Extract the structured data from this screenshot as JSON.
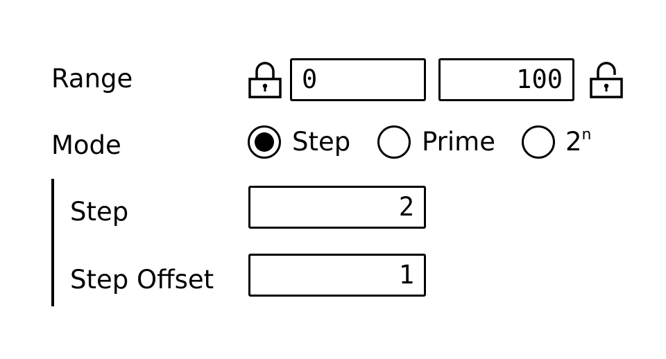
{
  "range": {
    "label": "Range",
    "min_value": "0",
    "max_value": "100",
    "min_lock_icon": "lock-closed-icon",
    "max_lock_icon": "lock-open-icon"
  },
  "mode": {
    "label": "Mode",
    "selected": "Step",
    "options": [
      {
        "label": "Step"
      },
      {
        "label": "Prime"
      },
      {
        "label": "2",
        "superscript": "n"
      }
    ]
  },
  "step": {
    "label": "Step",
    "value": "2"
  },
  "step_offset": {
    "label": "Step Offset",
    "value": "1"
  }
}
